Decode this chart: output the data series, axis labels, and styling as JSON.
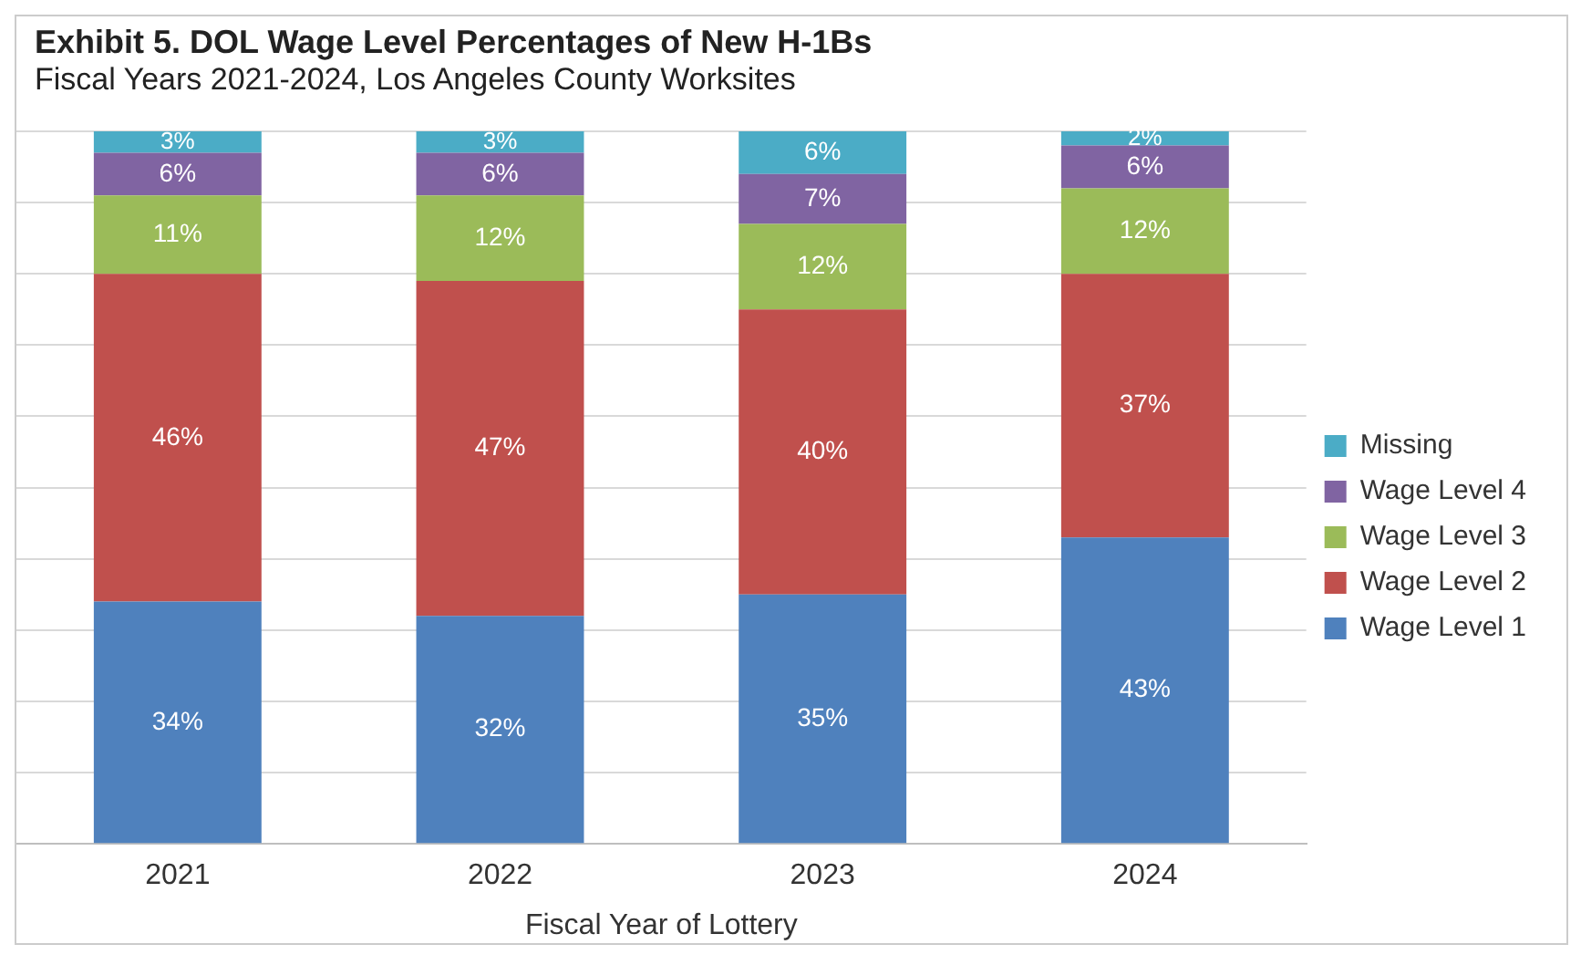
{
  "chart_data": {
    "type": "bar",
    "title": "Exhibit 5. DOL Wage Level Percentages of New H-1Bs",
    "subtitle": "Fiscal Years 2021-2024, Los Angeles County Worksites",
    "xlabel": "Fiscal Year of Lottery",
    "categories": [
      "2021",
      "2022",
      "2023",
      "2024"
    ],
    "stacked": true,
    "tick_labels": "x",
    "grid": "y",
    "legend": "right",
    "series": [
      {
        "name": "Wage Level 1",
        "color": "#4f81bd",
        "values": [
          34,
          32,
          35,
          43
        ],
        "value_labels": [
          "34%",
          "32%",
          "35%",
          "43%"
        ]
      },
      {
        "name": "Wage Level 2",
        "color": "#c0504d",
        "values": [
          46,
          47,
          40,
          37
        ],
        "value_labels": [
          "46%",
          "47%",
          "40%",
          "37%"
        ]
      },
      {
        "name": "Wage Level 3",
        "color": "#9bbb59",
        "values": [
          11,
          12,
          12,
          12
        ],
        "value_labels": [
          "11%",
          "12%",
          "12%",
          "12%"
        ]
      },
      {
        "name": "Wage Level 4",
        "color": "#8064a2",
        "values": [
          6,
          6,
          7,
          6
        ],
        "value_labels": [
          "6%",
          "6%",
          "7%",
          "6%"
        ]
      },
      {
        "name": "Missing",
        "color": "#4bacc6",
        "values": [
          3,
          3,
          6,
          2
        ],
        "value_labels": [
          "3%",
          "3%",
          "6%",
          "2%"
        ]
      }
    ]
  }
}
